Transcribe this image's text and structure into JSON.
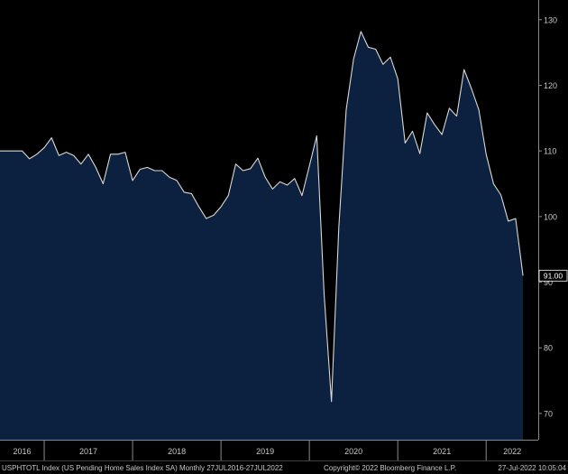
{
  "chart_data": {
    "type": "area",
    "x_start": "2016-07",
    "frequency": "monthly",
    "values": [
      110,
      110,
      110,
      110,
      108.8,
      109.5,
      110.5,
      112,
      109.3,
      109.8,
      109.3,
      108,
      109.5,
      107.5,
      105,
      109.5,
      109.5,
      109.8,
      105.5,
      107.2,
      107.5,
      107,
      107,
      106,
      105.5,
      103.7,
      103.5,
      101.5,
      99.7,
      100.2,
      101.5,
      103.2,
      108,
      107,
      107.3,
      108.9,
      106,
      104.2,
      105.3,
      104.8,
      105.8,
      103.2,
      107.7,
      112.3,
      88.2,
      71.8,
      98.4,
      116.3,
      124,
      128.2,
      125.8,
      125.5,
      123.2,
      124.3,
      121,
      111.2,
      113,
      109.6,
      115.8,
      114,
      112.5,
      116.5,
      115.3,
      122.4,
      119.5,
      116.3,
      109.5,
      105,
      103.3,
      99.3,
      99.7,
      91
    ],
    "ylim": [
      66,
      133
    ],
    "yticks": [
      70,
      80,
      90,
      100,
      110,
      120,
      130
    ],
    "year_labels": [
      "2016",
      "2017",
      "2018",
      "2019",
      "2020",
      "2021",
      "2022"
    ],
    "last_value_label": "91.00",
    "grid": false,
    "fill_color": "#0b213f",
    "line_color": "#d8d8d8"
  },
  "footer": {
    "left": "USPHTOTL Index (US Pending Home Sales Index SA)  Monthly 27JUL2016-27JUL2022",
    "middle": "Copyright© 2022 Bloomberg Finance L.P.",
    "right": "27-Jul-2022 10:05:04"
  }
}
